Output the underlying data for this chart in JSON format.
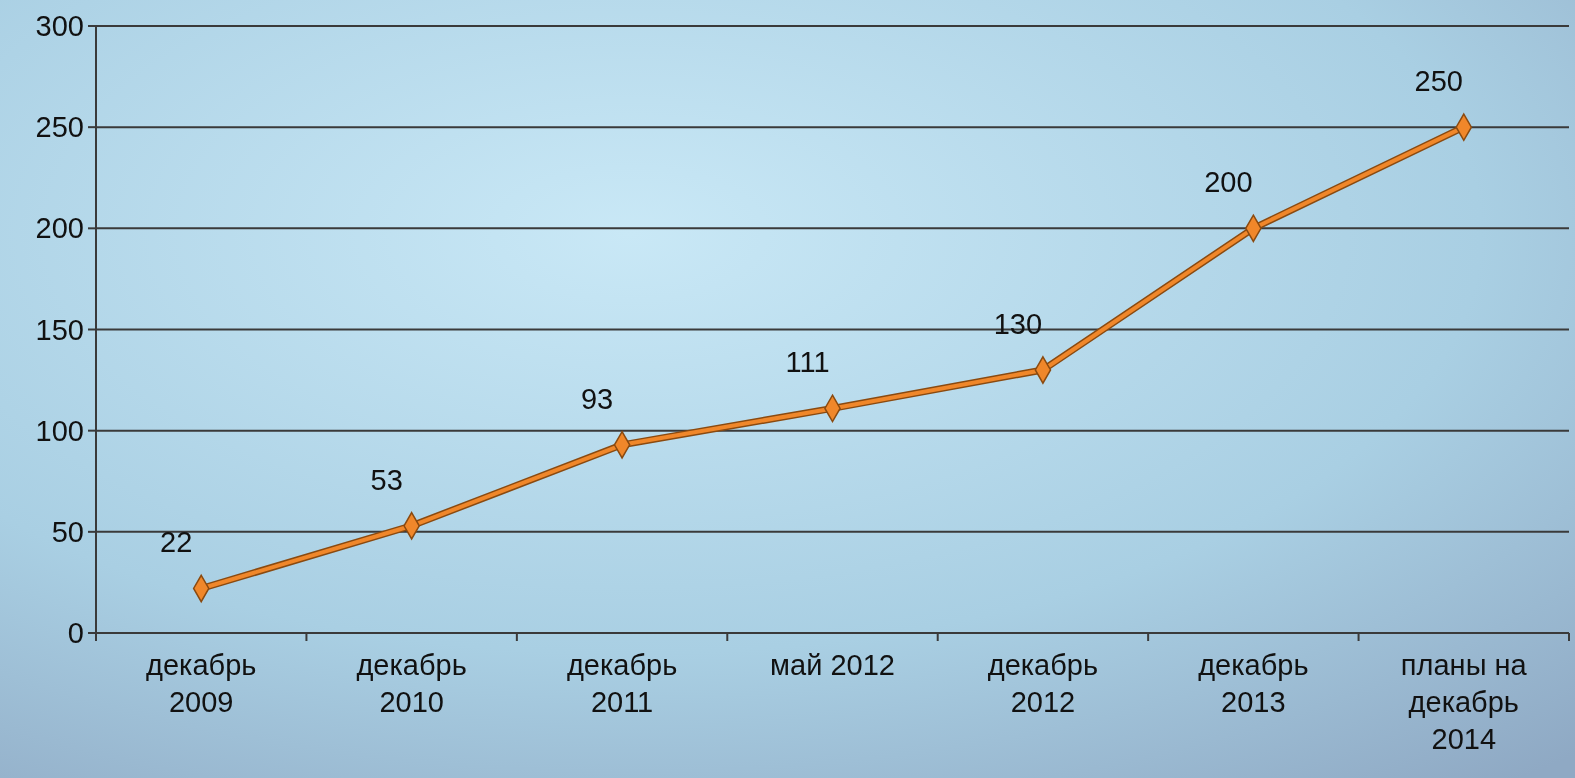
{
  "chart_data": {
    "type": "line",
    "categories": [
      "декабрь 2009",
      "декабрь 2010",
      "декабрь 2011",
      "май 2012",
      "декабрь 2012",
      "декабрь 2013",
      "планы на декабрь 2014"
    ],
    "series": [
      {
        "color": "#f0872a",
        "values": [
          22,
          53,
          93,
          111,
          130,
          200,
          250
        ]
      }
    ],
    "ylim": [
      0,
      300
    ],
    "yticks": [
      0,
      50,
      100,
      150,
      200,
      250,
      300
    ],
    "grid": "y",
    "marker": "diamond",
    "data_labels": true
  }
}
